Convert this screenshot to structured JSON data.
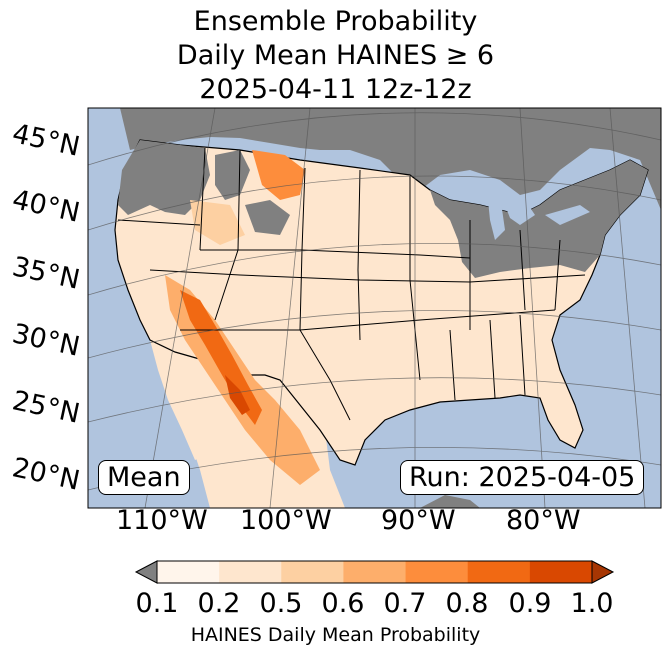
{
  "title": {
    "line1": "Ensemble Probability",
    "line2": "Daily Mean HAINES ≥ 6",
    "line3": "2025-04-11 12z-12z"
  },
  "latitude_labels": [
    "45°N",
    "40°N",
    "35°N",
    "30°N",
    "25°N",
    "20°N"
  ],
  "longitude_labels": [
    "110°W",
    "100°W",
    "90°W",
    "80°W"
  ],
  "stat_label": "Mean",
  "run_label": "Run: 2025-04-05",
  "colorbar": {
    "ticks": [
      "0.1",
      "0.2",
      "0.5",
      "0.6",
      "0.7",
      "0.8",
      "0.9",
      "1.0"
    ],
    "label": "HAINES Daily Mean Probability",
    "colors": [
      "#fff5eb",
      "#fee6ce",
      "#fdd0a2",
      "#fdae6b",
      "#fd8d3c",
      "#f16913",
      "#d94801"
    ],
    "under_color": "#808080",
    "over_color": "#a63603"
  },
  "map_colors": {
    "ocean": "#b0c4de",
    "no_data": "#808080",
    "low": "#fee6ce"
  }
}
